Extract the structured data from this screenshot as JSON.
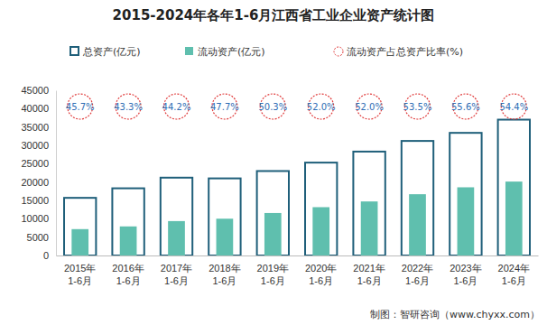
{
  "chart_data": {
    "type": "bar",
    "title": "2015-2024年各年1-6月江西省工业企业资产统计图",
    "categories": [
      "2015年1-6月",
      "2016年1-6月",
      "2017年1-6月",
      "2018年1-6月",
      "2019年1-6月",
      "2020年1-6月",
      "2021年1-6月",
      "2022年1-6月",
      "2023年1-6月",
      "2024年1-6月"
    ],
    "series": [
      {
        "name": "总资产(亿元)",
        "type": "bar",
        "color": "#1f5f7a",
        "values": [
          15700,
          18300,
          21200,
          21000,
          23000,
          25300,
          28300,
          31200,
          33400,
          37000
        ]
      },
      {
        "name": "流动资产(亿元)",
        "type": "bar",
        "color": "#5fbfae",
        "values": [
          7180,
          7920,
          9370,
          10020,
          11570,
          13160,
          14720,
          16690,
          18570,
          20130
        ]
      },
      {
        "name": "流动资产占总资产比率(%)",
        "type": "scatter",
        "color": "#e03c3c",
        "marker": "circle",
        "line_style": "dashed",
        "data_labels": true,
        "values": [
          45.7,
          43.3,
          44.2,
          47.7,
          50.3,
          52.0,
          52.0,
          53.5,
          55.6,
          54.4
        ],
        "value_labels": [
          "45.7%",
          "43.3%",
          "44.2%",
          "47.7%",
          "50.3%",
          "52.0%",
          "52.0%",
          "53.5%",
          "55.6%",
          "54.4%"
        ]
      }
    ],
    "ylim": [
      0,
      45000
    ],
    "yticks": [
      0,
      5000,
      10000,
      15000,
      20000,
      25000,
      30000,
      35000,
      40000,
      45000
    ],
    "grid": false,
    "annotations": [
      "制图：智研咨询（www.chyxx.com）"
    ]
  }
}
